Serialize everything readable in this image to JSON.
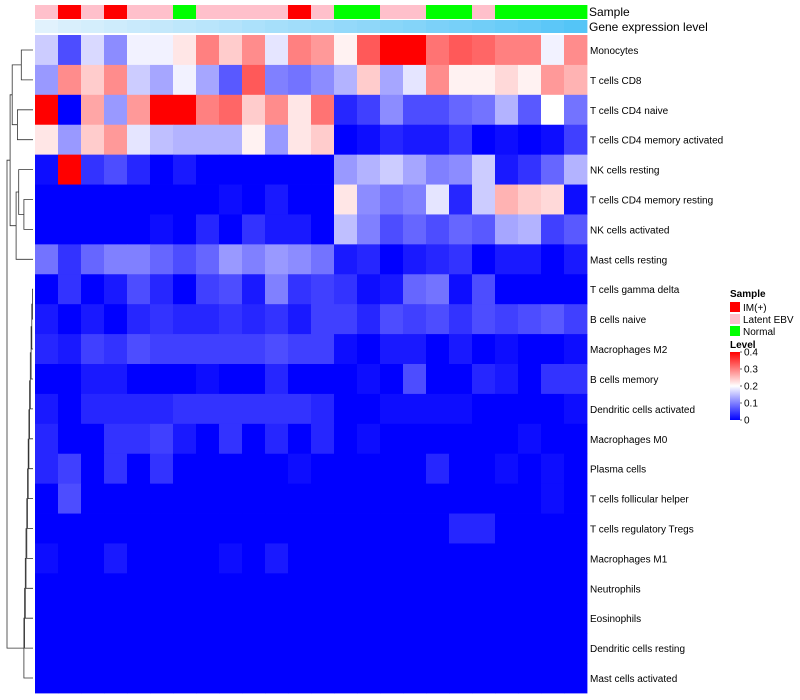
{
  "chart_data": {
    "type": "heatmap",
    "annotation_labels": {
      "sample": "Sample",
      "gene_expression": "Gene expression level"
    },
    "sample_annotation": [
      "Latent EBV",
      "IM(+)",
      "Latent EBV",
      "IM(+)",
      "Latent EBV",
      "Latent EBV",
      "Normal",
      "Latent EBV",
      "Latent EBV",
      "Latent EBV",
      "Latent EBV",
      "IM(+)",
      "Latent EBV",
      "Normal",
      "Normal",
      "Latent EBV",
      "Latent EBV",
      "Normal",
      "Normal",
      "Latent EBV",
      "Normal",
      "Normal",
      "Normal",
      "Normal"
    ],
    "gene_expression_annotation": [
      0.05,
      0.08,
      0.1,
      0.12,
      0.14,
      0.16,
      0.18,
      0.2,
      0.22,
      0.25,
      0.27,
      0.29,
      0.31,
      0.34,
      0.36,
      0.38,
      0.4,
      0.43,
      0.45,
      0.47,
      0.5,
      0.52,
      0.55,
      0.58
    ],
    "rows": [
      "Monocytes",
      "T cells CD8",
      "T cells CD4 naive",
      "T cells CD4 memory activated",
      "NK cells resting",
      "T cells CD4 memory resting",
      "NK cells activated",
      "Mast cells resting",
      "T cells gamma delta",
      "B cells naive",
      "Macrophages M2",
      "B cells memory",
      "Dendritic cells activated",
      "Macrophages M0",
      "Plasma cells",
      "T cells follicular helper",
      "T cells regulatory  Tregs",
      "Macrophages M1",
      "Neutrophils",
      "Eosinophils",
      "Dendritic cells resting",
      "Mast cells activated"
    ],
    "values": [
      [
        0.16,
        0.06,
        0.17,
        0.11,
        0.19,
        0.19,
        0.22,
        0.3,
        0.24,
        0.29,
        0.18,
        0.3,
        0.28,
        0.21,
        0.33,
        0.4,
        0.4,
        0.31,
        0.33,
        0.32,
        0.3,
        0.3,
        0.19,
        0.29
      ],
      [
        0.12,
        0.29,
        0.24,
        0.29,
        0.16,
        0.13,
        0.19,
        0.13,
        0.07,
        0.33,
        0.1,
        0.09,
        0.11,
        0.14,
        0.24,
        0.13,
        0.18,
        0.29,
        0.21,
        0.21,
        0.23,
        0.21,
        0.28,
        0.26
      ],
      [
        0.4,
        0.0,
        0.27,
        0.12,
        0.28,
        0.4,
        0.4,
        0.3,
        0.32,
        0.24,
        0.29,
        0.22,
        0.31,
        0.03,
        0.05,
        0.11,
        0.06,
        0.06,
        0.08,
        0.09,
        0.14,
        0.07,
        0.2,
        0.09
      ],
      [
        0.22,
        0.12,
        0.24,
        0.28,
        0.18,
        0.15,
        0.14,
        0.14,
        0.14,
        0.21,
        0.12,
        0.22,
        0.24,
        0.0,
        0.01,
        0.03,
        0.02,
        0.02,
        0.04,
        0.0,
        0.01,
        0.0,
        0.01,
        0.05
      ],
      [
        0.01,
        0.4,
        0.04,
        0.06,
        0.03,
        0.0,
        0.02,
        0.0,
        0.0,
        0.0,
        0.0,
        0.0,
        0.0,
        0.12,
        0.14,
        0.16,
        0.13,
        0.1,
        0.11,
        0.16,
        0.02,
        0.04,
        0.08,
        0.14
      ],
      [
        0.0,
        0.0,
        0.0,
        0.0,
        0.0,
        0.0,
        0.0,
        0.0,
        0.01,
        0.0,
        0.02,
        0.0,
        0.0,
        0.22,
        0.11,
        0.09,
        0.1,
        0.18,
        0.03,
        0.16,
        0.26,
        0.24,
        0.23,
        0.01
      ],
      [
        0.0,
        0.0,
        0.0,
        0.0,
        0.0,
        0.01,
        0.0,
        0.03,
        0.0,
        0.04,
        0.02,
        0.02,
        0.0,
        0.15,
        0.1,
        0.06,
        0.08,
        0.06,
        0.08,
        0.07,
        0.13,
        0.14,
        0.05,
        0.07
      ],
      [
        0.09,
        0.04,
        0.08,
        0.1,
        0.1,
        0.08,
        0.06,
        0.08,
        0.12,
        0.1,
        0.12,
        0.11,
        0.09,
        0.02,
        0.03,
        0.0,
        0.02,
        0.03,
        0.04,
        0.0,
        0.02,
        0.02,
        0.0,
        0.02
      ],
      [
        0.0,
        0.04,
        0.0,
        0.02,
        0.06,
        0.03,
        0.0,
        0.05,
        0.06,
        0.02,
        0.1,
        0.04,
        0.05,
        0.04,
        0.01,
        0.02,
        0.08,
        0.09,
        0.01,
        0.06,
        0.0,
        0.0,
        0.0,
        0.0
      ],
      [
        0.02,
        0.0,
        0.02,
        0.0,
        0.03,
        0.04,
        0.03,
        0.03,
        0.04,
        0.03,
        0.04,
        0.02,
        0.05,
        0.05,
        0.03,
        0.06,
        0.05,
        0.06,
        0.04,
        0.06,
        0.05,
        0.06,
        0.07,
        0.05
      ],
      [
        0.03,
        0.02,
        0.05,
        0.04,
        0.06,
        0.05,
        0.05,
        0.05,
        0.05,
        0.05,
        0.06,
        0.05,
        0.05,
        0.01,
        0.0,
        0.02,
        0.02,
        0.0,
        0.02,
        0.0,
        0.01,
        0.0,
        0.0,
        0.01
      ],
      [
        0.0,
        0.0,
        0.02,
        0.02,
        0.0,
        0.0,
        0.0,
        0.01,
        0.0,
        0.0,
        0.03,
        0.0,
        0.0,
        0.0,
        0.01,
        0.0,
        0.06,
        0.0,
        0.0,
        0.03,
        0.02,
        0.0,
        0.04,
        0.04
      ],
      [
        0.02,
        0.0,
        0.03,
        0.03,
        0.03,
        0.03,
        0.04,
        0.04,
        0.04,
        0.04,
        0.04,
        0.04,
        0.03,
        0.0,
        0.0,
        0.01,
        0.01,
        0.01,
        0.01,
        0.0,
        0.0,
        0.0,
        0.0,
        0.01
      ],
      [
        0.03,
        0.0,
        0.0,
        0.04,
        0.04,
        0.05,
        0.02,
        0.0,
        0.04,
        0.0,
        0.03,
        0.0,
        0.03,
        0.0,
        0.01,
        0.0,
        0.0,
        0.0,
        0.0,
        0.0,
        0.0,
        0.01,
        0.0,
        0.0
      ],
      [
        0.03,
        0.05,
        0.0,
        0.04,
        0.0,
        0.04,
        0.0,
        0.0,
        0.0,
        0.0,
        0.0,
        0.01,
        0.0,
        0.0,
        0.0,
        0.0,
        0.0,
        0.03,
        0.0,
        0.0,
        0.01,
        0.0,
        0.01,
        0.0
      ],
      [
        0.0,
        0.06,
        0.0,
        0.0,
        0.0,
        0.0,
        0.0,
        0.0,
        0.0,
        0.0,
        0.0,
        0.0,
        0.0,
        0.0,
        0.0,
        0.0,
        0.0,
        0.0,
        0.0,
        0.0,
        0.0,
        0.0,
        0.01,
        0.0
      ],
      [
        0.0,
        0.0,
        0.0,
        0.0,
        0.0,
        0.0,
        0.0,
        0.0,
        0.0,
        0.0,
        0.0,
        0.0,
        0.0,
        0.0,
        0.0,
        0.0,
        0.0,
        0.0,
        0.03,
        0.03,
        0.0,
        0.0,
        0.0,
        0.0
      ],
      [
        0.01,
        0.0,
        0.0,
        0.02,
        0.0,
        0.0,
        0.0,
        0.0,
        0.01,
        0.0,
        0.02,
        0.0,
        0.0,
        0.0,
        0.0,
        0.0,
        0.0,
        0.0,
        0.0,
        0.0,
        0.0,
        0.0,
        0.0,
        0.0
      ],
      [
        0.0,
        0.0,
        0.0,
        0.0,
        0.0,
        0.0,
        0.0,
        0.0,
        0.0,
        0.0,
        0.0,
        0.0,
        0.0,
        0.0,
        0.0,
        0.0,
        0.0,
        0.0,
        0.0,
        0.0,
        0.0,
        0.0,
        0.0,
        0.0
      ],
      [
        0.0,
        0.0,
        0.0,
        0.0,
        0.0,
        0.0,
        0.0,
        0.0,
        0.0,
        0.0,
        0.0,
        0.0,
        0.0,
        0.0,
        0.0,
        0.0,
        0.0,
        0.0,
        0.0,
        0.0,
        0.0,
        0.0,
        0.0,
        0.0
      ],
      [
        0.0,
        0.0,
        0.0,
        0.0,
        0.0,
        0.0,
        0.0,
        0.0,
        0.0,
        0.0,
        0.0,
        0.0,
        0.0,
        0.0,
        0.0,
        0.0,
        0.0,
        0.0,
        0.0,
        0.0,
        0.0,
        0.0,
        0.0,
        0.0
      ],
      [
        0.0,
        0.0,
        0.0,
        0.0,
        0.0,
        0.0,
        0.0,
        0.0,
        0.0,
        0.0,
        0.0,
        0.0,
        0.0,
        0.0,
        0.0,
        0.0,
        0.0,
        0.0,
        0.0,
        0.0,
        0.0,
        0.0,
        0.0,
        0.0
      ]
    ],
    "color_scale": {
      "min": 0,
      "max": 0.4,
      "low": "#0000ff",
      "mid": "#ffffff",
      "high": "#ff0000",
      "ticks": [
        0,
        0.1,
        0.2,
        0.3,
        0.4
      ],
      "tick_labels": [
        "0",
        "0.1",
        "0.2",
        "0.3",
        "0.4"
      ]
    },
    "legends": {
      "sample": {
        "title": "Sample",
        "entries": [
          {
            "label": "IM(+)",
            "color": "#ff0000"
          },
          {
            "label": "Latent EBV",
            "color": "#ffc0cb"
          },
          {
            "label": "Normal",
            "color": "#00ff00"
          }
        ]
      },
      "level": {
        "title": "Level"
      }
    },
    "gene_expression_colors": {
      "low": "#eef6fd",
      "high": "#4fc3f7"
    },
    "dendrogram": true,
    "legend_position": "right"
  }
}
